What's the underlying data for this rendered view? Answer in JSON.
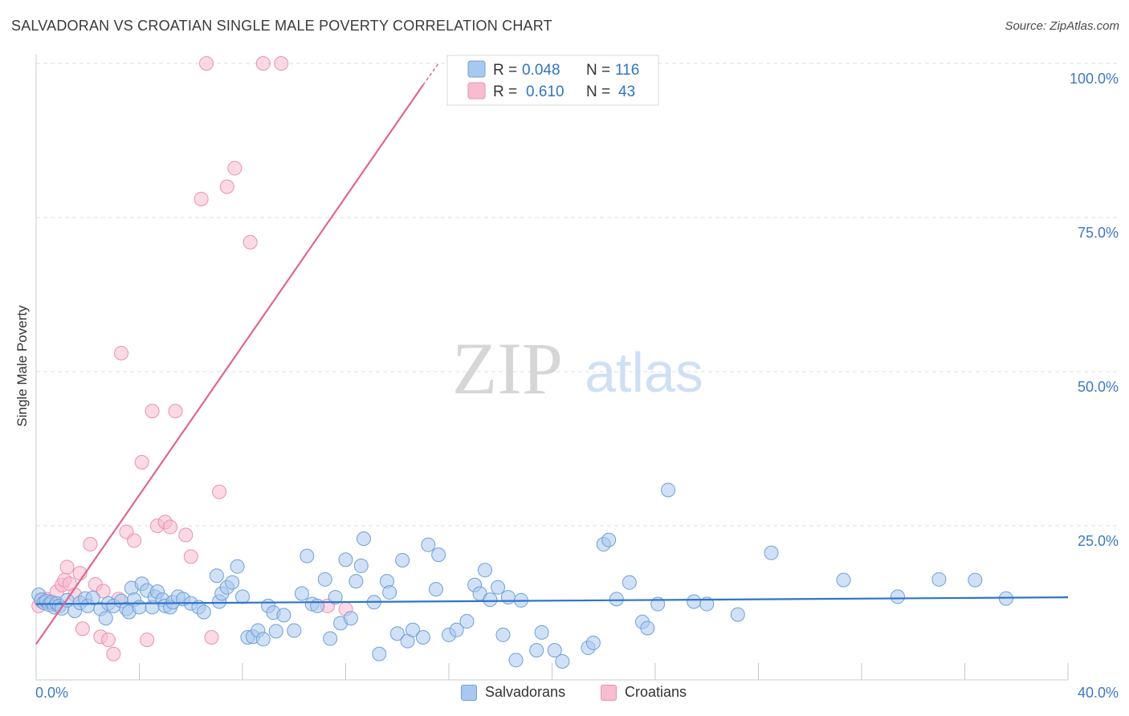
{
  "title": "SALVADORAN VS CROATIAN SINGLE MALE POVERTY CORRELATION CHART",
  "source": "Source: ZipAtlas.com",
  "watermark": {
    "zip": "ZIP",
    "atlas": "atlas"
  },
  "colors": {
    "blue_fill": "#a9c8ef",
    "blue_stroke": "#6f9fd8",
    "blue_line": "#2f74c8",
    "pink_fill": "#f7bcd0",
    "pink_stroke": "#ec8fae",
    "pink_line": "#e0668f",
    "tick_label": "#3f78c8",
    "grid": "#dddddd"
  },
  "legend": {
    "rows": [
      {
        "r_label": "R =",
        "r_value": "0.048",
        "n_label": "N =",
        "n_value": "116",
        "series": "Salvadorans"
      },
      {
        "r_label": "R =",
        "r_value": "0.610",
        "n_label": "N =",
        "n_value": "43",
        "series": "Croatians"
      }
    ]
  },
  "chart_data": {
    "type": "scatter",
    "title": "SALVADORAN VS CROATIAN SINGLE MALE POVERTY CORRELATION CHART",
    "xlabel": "",
    "ylabel": "Single Male Poverty",
    "xlim": [
      0,
      40
    ],
    "ylim": [
      0,
      100
    ],
    "x_tick_labels": [
      "0.0%",
      "40.0%"
    ],
    "y_tick_labels": [
      "25.0%",
      "50.0%",
      "75.0%",
      "100.0%"
    ],
    "y_ticks": [
      25,
      50,
      75,
      100
    ],
    "grid": true,
    "legend_position": "top-center",
    "series": [
      {
        "name": "Salvadorans",
        "color": "#a9c8ef",
        "trend": {
          "x": [
            0,
            40
          ],
          "y": [
            12.3,
            13.4
          ]
        },
        "points": [
          [
            0.1,
            13.8
          ],
          [
            0.2,
            13.0
          ],
          [
            0.3,
            12.5
          ],
          [
            0.4,
            12.8
          ],
          [
            0.5,
            12.2
          ],
          [
            0.6,
            12.6
          ],
          [
            0.7,
            11.8
          ],
          [
            0.8,
            12.4
          ],
          [
            0.9,
            12.0
          ],
          [
            1.0,
            11.6
          ],
          [
            1.2,
            12.9
          ],
          [
            1.5,
            11.2
          ],
          [
            1.7,
            12.5
          ],
          [
            1.9,
            13.2
          ],
          [
            2.0,
            12.0
          ],
          [
            2.2,
            13.3
          ],
          [
            2.5,
            11.5
          ],
          [
            2.7,
            10.0
          ],
          [
            2.8,
            12.4
          ],
          [
            3.0,
            12.0
          ],
          [
            3.3,
            12.8
          ],
          [
            3.5,
            11.5
          ],
          [
            3.6,
            11.0
          ],
          [
            3.7,
            14.9
          ],
          [
            3.8,
            13.0
          ],
          [
            4.0,
            11.8
          ],
          [
            4.1,
            15.6
          ],
          [
            4.3,
            14.5
          ],
          [
            4.5,
            11.8
          ],
          [
            4.6,
            13.5
          ],
          [
            4.7,
            14.3
          ],
          [
            4.9,
            13.0
          ],
          [
            5.0,
            12.0
          ],
          [
            5.2,
            11.8
          ],
          [
            5.3,
            12.6
          ],
          [
            5.5,
            13.5
          ],
          [
            5.7,
            13.1
          ],
          [
            6.0,
            12.4
          ],
          [
            6.3,
            11.8
          ],
          [
            6.5,
            11.0
          ],
          [
            7.0,
            16.9
          ],
          [
            7.1,
            12.7
          ],
          [
            7.2,
            14.0
          ],
          [
            7.4,
            15.0
          ],
          [
            7.6,
            15.8
          ],
          [
            7.8,
            18.4
          ],
          [
            8.0,
            13.5
          ],
          [
            8.2,
            6.9
          ],
          [
            8.4,
            7.0
          ],
          [
            8.6,
            8.0
          ],
          [
            8.8,
            6.6
          ],
          [
            9.0,
            12.0
          ],
          [
            9.2,
            10.9
          ],
          [
            9.3,
            7.9
          ],
          [
            9.6,
            10.5
          ],
          [
            10.0,
            8.0
          ],
          [
            10.3,
            14.0
          ],
          [
            10.5,
            20.1
          ],
          [
            10.7,
            12.3
          ],
          [
            10.9,
            12.0
          ],
          [
            11.2,
            16.3
          ],
          [
            11.4,
            6.7
          ],
          [
            11.6,
            13.4
          ],
          [
            11.8,
            9.2
          ],
          [
            12.0,
            19.5
          ],
          [
            12.2,
            10.0
          ],
          [
            12.4,
            16.0
          ],
          [
            12.6,
            18.5
          ],
          [
            12.7,
            22.9
          ],
          [
            13.1,
            12.6
          ],
          [
            13.3,
            4.2
          ],
          [
            13.6,
            16.0
          ],
          [
            13.7,
            14.2
          ],
          [
            14.0,
            7.5
          ],
          [
            14.2,
            19.4
          ],
          [
            14.4,
            6.3
          ],
          [
            14.6,
            8.1
          ],
          [
            15.0,
            6.9
          ],
          [
            15.2,
            21.9
          ],
          [
            15.5,
            14.7
          ],
          [
            15.6,
            20.3
          ],
          [
            16.0,
            7.3
          ],
          [
            16.3,
            8.1
          ],
          [
            16.7,
            9.5
          ],
          [
            17.0,
            15.4
          ],
          [
            17.2,
            14.0
          ],
          [
            17.4,
            17.8
          ],
          [
            17.6,
            13.0
          ],
          [
            17.9,
            15.0
          ],
          [
            18.1,
            7.3
          ],
          [
            18.3,
            13.4
          ],
          [
            18.6,
            3.2
          ],
          [
            18.8,
            12.9
          ],
          [
            19.4,
            4.8
          ],
          [
            19.6,
            7.7
          ],
          [
            20.1,
            4.8
          ],
          [
            20.4,
            3.0
          ],
          [
            21.4,
            5.2
          ],
          [
            21.6,
            6.0
          ],
          [
            22.0,
            22.0
          ],
          [
            22.2,
            22.7
          ],
          [
            22.5,
            13.1
          ],
          [
            23.0,
            15.8
          ],
          [
            23.5,
            9.4
          ],
          [
            23.7,
            8.4
          ],
          [
            24.1,
            12.3
          ],
          [
            24.5,
            30.8
          ],
          [
            25.5,
            12.7
          ],
          [
            26.0,
            12.3
          ],
          [
            27.2,
            10.6
          ],
          [
            28.5,
            20.6
          ],
          [
            31.3,
            16.2
          ],
          [
            33.4,
            13.5
          ],
          [
            35.0,
            16.3
          ],
          [
            36.4,
            16.2
          ],
          [
            37.6,
            13.2
          ]
        ]
      },
      {
        "name": "Croatians",
        "color": "#f7bcd0",
        "trend": {
          "x": [
            0,
            15
          ],
          "y": [
            5.8,
            96.5
          ]
        },
        "points": [
          [
            0.1,
            12.0
          ],
          [
            0.2,
            12.8
          ],
          [
            0.4,
            13.1
          ],
          [
            0.6,
            12.6
          ],
          [
            0.7,
            12.2
          ],
          [
            0.8,
            14.3
          ],
          [
            1.0,
            15.4
          ],
          [
            1.1,
            16.2
          ],
          [
            1.2,
            18.3
          ],
          [
            1.3,
            15.6
          ],
          [
            1.5,
            13.8
          ],
          [
            1.7,
            17.3
          ],
          [
            1.8,
            8.3
          ],
          [
            2.1,
            22.0
          ],
          [
            2.3,
            15.5
          ],
          [
            2.5,
            7.0
          ],
          [
            2.6,
            14.4
          ],
          [
            2.8,
            6.5
          ],
          [
            3.0,
            4.2
          ],
          [
            3.2,
            13.1
          ],
          [
            3.3,
            53.0
          ],
          [
            3.5,
            24.0
          ],
          [
            3.8,
            22.6
          ],
          [
            4.1,
            35.3
          ],
          [
            4.3,
            6.5
          ],
          [
            4.5,
            43.6
          ],
          [
            4.7,
            25.0
          ],
          [
            5.0,
            25.6
          ],
          [
            5.2,
            24.8
          ],
          [
            5.4,
            43.6
          ],
          [
            5.8,
            23.5
          ],
          [
            6.0,
            20.0
          ],
          [
            6.4,
            78.0
          ],
          [
            6.6,
            100.0
          ],
          [
            6.8,
            6.9
          ],
          [
            7.1,
            30.5
          ],
          [
            7.4,
            80.0
          ],
          [
            7.7,
            83.0
          ],
          [
            8.3,
            71.0
          ],
          [
            8.8,
            100.0
          ],
          [
            9.5,
            100.0
          ],
          [
            11.3,
            12.0
          ],
          [
            12.0,
            11.5
          ]
        ]
      }
    ]
  }
}
